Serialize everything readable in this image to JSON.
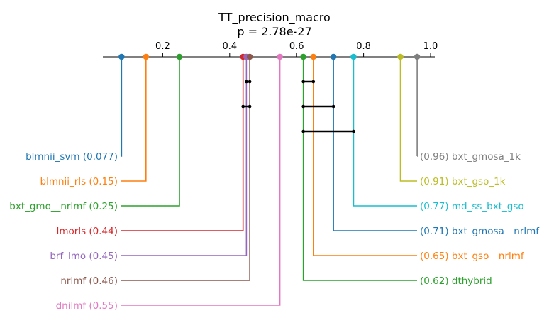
{
  "chart_data": {
    "type": "critical-difference",
    "title": "TT_precision_macro",
    "subtitle": "p = 2.78e-27",
    "axis": {
      "range": [
        0.0,
        1.0
      ],
      "ticks": [
        0.2,
        0.4,
        0.6,
        0.8,
        1.0
      ],
      "tick_labels": [
        "0.2",
        "0.4",
        "0.6",
        "0.8",
        "1.0"
      ]
    },
    "left_methods": [
      {
        "name": "blmnii_svm",
        "value": 0.077,
        "label": "blmnii_svm (0.077)",
        "color": "#1f77b4"
      },
      {
        "name": "blmnii_rls",
        "value": 0.15,
        "label": "blmnii_rls (0.15)",
        "color": "#ff7f0e"
      },
      {
        "name": "bxt_gmo__nrlmf",
        "value": 0.25,
        "label": "bxt_gmo__nrlmf (0.25)",
        "color": "#2ca02c"
      },
      {
        "name": "lmorls",
        "value": 0.44,
        "label": "lmorls (0.44)",
        "color": "#d62728"
      },
      {
        "name": "brf_lmo",
        "value": 0.45,
        "label": "brf_lmo (0.45)",
        "color": "#9467bd"
      },
      {
        "name": "nrlmf",
        "value": 0.46,
        "label": "nrlmf (0.46)",
        "color": "#8c564b"
      },
      {
        "name": "dnilmf",
        "value": 0.55,
        "label": "dnilmf (0.55)",
        "color": "#e377c2"
      }
    ],
    "right_methods": [
      {
        "name": "bxt_gmosa_1k",
        "value": 0.96,
        "label": "(0.96) bxt_gmosa_1k",
        "color": "#7f7f7f"
      },
      {
        "name": "bxt_gso_1k",
        "value": 0.91,
        "label": "(0.91) bxt_gso_1k",
        "color": "#bcbd22"
      },
      {
        "name": "md_ss_bxt_gso",
        "value": 0.77,
        "label": "(0.77) md_ss_bxt_gso",
        "color": "#17becf"
      },
      {
        "name": "bxt_gmosa__nrlmf",
        "value": 0.71,
        "label": "(0.71) bxt_gmosa__nrlmf",
        "color": "#1f77b4"
      },
      {
        "name": "bxt_gso__nrlmf",
        "value": 0.65,
        "label": "(0.65) bxt_gso__nrlmf",
        "color": "#ff7f0e"
      },
      {
        "name": "dthybrid",
        "value": 0.62,
        "label": "(0.62) dthybrid",
        "color": "#2ca02c"
      }
    ],
    "cliques": [
      [
        0.45,
        0.46
      ],
      [
        0.44,
        0.46
      ],
      [
        0.62,
        0.65
      ],
      [
        0.62,
        0.71
      ],
      [
        0.62,
        0.77
      ]
    ]
  }
}
